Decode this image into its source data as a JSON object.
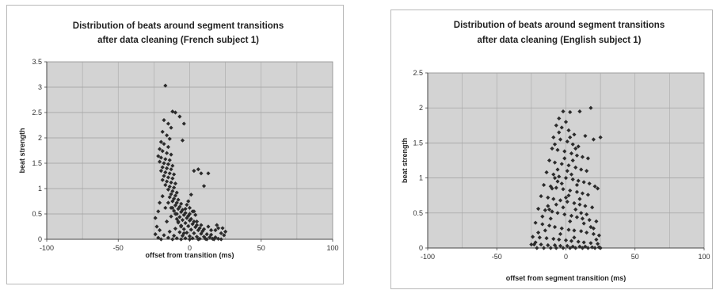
{
  "chart_data": [
    {
      "type": "scatter",
      "title": [
        "Distribution of beats around segment transitions",
        "after data cleaning (French subject 1)"
      ],
      "xlabel": "offset from transition (ms)",
      "ylabel": "beat strength",
      "xlim": [
        -100,
        100
      ],
      "ylim": [
        0,
        3.5
      ],
      "xticks": [
        "-100",
        "-50",
        "0",
        "50",
        "100"
      ],
      "yticks": [
        "0",
        "0.5",
        "1",
        "1.5",
        "2",
        "2.5",
        "3",
        "3.5"
      ],
      "grid": true,
      "legend": "none",
      "marker_color": "#2b2b2b",
      "plot_background": "#d3d3d3",
      "points": [
        [
          -17,
          3.03
        ],
        [
          -12,
          2.52
        ],
        [
          -10,
          2.5
        ],
        [
          -7,
          2.42
        ],
        [
          -18,
          2.35
        ],
        [
          -15,
          2.28
        ],
        [
          -13,
          2.2
        ],
        [
          -19,
          2.12
        ],
        [
          -16,
          2.05
        ],
        [
          -14,
          1.98
        ],
        [
          -20,
          1.92
        ],
        [
          -18,
          1.88
        ],
        [
          -15,
          1.82
        ],
        [
          -21,
          1.78
        ],
        [
          -19,
          1.74
        ],
        [
          -16,
          1.7
        ],
        [
          -13,
          1.67
        ],
        [
          -22,
          1.64
        ],
        [
          -20,
          1.61
        ],
        [
          -17,
          1.58
        ],
        [
          -14,
          1.56
        ],
        [
          -21,
          1.53
        ],
        [
          -18,
          1.5
        ],
        [
          -15,
          1.48
        ],
        [
          -12,
          1.45
        ],
        [
          -19,
          1.42
        ],
        [
          -16,
          1.4
        ],
        [
          -13,
          1.38
        ],
        [
          -20,
          1.35
        ],
        [
          -17,
          1.32
        ],
        [
          -14,
          1.3
        ],
        [
          -11,
          1.28
        ],
        [
          -18,
          1.25
        ],
        [
          -15,
          1.22
        ],
        [
          -12,
          1.2
        ],
        [
          -19,
          1.17
        ],
        [
          -16,
          1.14
        ],
        [
          -13,
          1.12
        ],
        [
          -10,
          1.1
        ],
        [
          -17,
          1.07
        ],
        [
          -14,
          1.04
        ],
        [
          -11,
          1.02
        ],
        [
          -15,
          0.98
        ],
        [
          -12,
          0.95
        ],
        [
          -9,
          0.92
        ],
        [
          -13,
          0.89
        ],
        [
          -10,
          0.86
        ],
        [
          -14,
          0.83
        ],
        [
          -11,
          0.8
        ],
        [
          -8,
          0.78
        ],
        [
          -12,
          0.75
        ],
        [
          -9,
          0.72
        ],
        [
          -6,
          0.7
        ],
        [
          -10,
          0.67
        ],
        [
          -7,
          0.64
        ],
        [
          -13,
          0.62
        ],
        [
          -8,
          0.6
        ],
        [
          -5,
          0.58
        ],
        [
          -11,
          0.56
        ],
        [
          -6,
          0.54
        ],
        [
          -3,
          0.52
        ],
        [
          -9,
          0.5
        ],
        [
          -4,
          0.48
        ],
        [
          -1,
          0.46
        ],
        [
          -7,
          0.44
        ],
        [
          -2,
          0.42
        ],
        [
          1,
          0.4
        ],
        [
          -5,
          0.38
        ],
        [
          0,
          0.37
        ],
        [
          3,
          0.35
        ],
        [
          -8,
          0.33
        ],
        [
          -3,
          0.32
        ],
        [
          2,
          0.3
        ],
        [
          5,
          0.28
        ],
        [
          -6,
          0.27
        ],
        [
          -1,
          0.26
        ],
        [
          4,
          0.24
        ],
        [
          7,
          0.22
        ],
        [
          -10,
          0.21
        ],
        [
          -4,
          0.2
        ],
        [
          1,
          0.19
        ],
        [
          6,
          0.18
        ],
        [
          9,
          0.16
        ],
        [
          -14,
          0.15
        ],
        [
          -7,
          0.14
        ],
        [
          -2,
          0.13
        ],
        [
          3,
          0.12
        ],
        [
          8,
          0.11
        ],
        [
          12,
          0.1
        ],
        [
          15,
          0.09
        ],
        [
          -18,
          0.08
        ],
        [
          -11,
          0.07
        ],
        [
          -5,
          0.07
        ],
        [
          0,
          0.06
        ],
        [
          5,
          0.05
        ],
        [
          10,
          0.05
        ],
        [
          14,
          0.04
        ],
        [
          18,
          0.04
        ],
        [
          -22,
          0.03
        ],
        [
          -15,
          0.03
        ],
        [
          -9,
          0.02
        ],
        [
          -3,
          0.02
        ],
        [
          2,
          0.02
        ],
        [
          7,
          0.01
        ],
        [
          11,
          0.01
        ],
        [
          16,
          0.01
        ],
        [
          20,
          0.01
        ],
        [
          -20,
          0.0
        ],
        [
          -12,
          0.0
        ],
        [
          -6,
          0.0
        ],
        [
          0,
          0.0
        ],
        [
          6,
          0.0
        ],
        [
          12,
          0.0
        ],
        [
          17,
          0.0
        ],
        [
          22,
          0.0
        ],
        [
          25,
          0.15
        ],
        [
          22,
          0.12
        ],
        [
          20,
          0.22
        ],
        [
          18,
          0.18
        ],
        [
          24,
          0.08
        ],
        [
          3,
          1.35
        ],
        [
          6,
          1.38
        ],
        [
          8,
          1.3
        ],
        [
          13,
          1.3
        ],
        [
          10,
          1.05
        ],
        [
          -4,
          2.28
        ],
        [
          -5,
          1.95
        ],
        [
          0,
          0.62
        ],
        [
          2,
          0.55
        ],
        [
          4,
          0.48
        ],
        [
          -1,
          0.75
        ],
        [
          -2,
          0.68
        ],
        [
          1,
          0.88
        ],
        [
          -24,
          0.42
        ],
        [
          -22,
          0.55
        ],
        [
          -23,
          0.25
        ],
        [
          -24,
          0.1
        ],
        [
          -21,
          0.18
        ],
        [
          -16,
          0.35
        ],
        [
          -13,
          0.45
        ],
        [
          -10,
          0.5
        ],
        [
          -8,
          0.35
        ],
        [
          -6,
          0.25
        ],
        [
          -4,
          0.12
        ],
        [
          -3,
          0.6
        ],
        [
          0,
          0.5
        ],
        [
          3,
          0.55
        ],
        [
          5,
          0.35
        ],
        [
          8,
          0.28
        ],
        [
          10,
          0.2
        ],
        [
          13,
          0.25
        ],
        [
          15,
          0.18
        ],
        [
          19,
          0.28
        ],
        [
          23,
          0.22
        ],
        [
          -17,
          0.62
        ],
        [
          -19,
          0.85
        ],
        [
          -21,
          0.72
        ],
        [
          -15,
          0.72
        ],
        [
          -12,
          0.62
        ],
        [
          -9,
          0.4
        ]
      ]
    },
    {
      "type": "scatter",
      "title": [
        "Distribution of beats around segment transitions",
        "after data cleaning (English subject 1)"
      ],
      "xlabel": "offset from segment transition (ms)",
      "ylabel": "beat strength",
      "xlim": [
        -100,
        100
      ],
      "ylim": [
        0,
        2.5
      ],
      "xticks": [
        "-100",
        "-50",
        "0",
        "50",
        "100"
      ],
      "yticks": [
        "0",
        "0.5",
        "1",
        "1.5",
        "2",
        "2.5"
      ],
      "grid": true,
      "legend": "none",
      "marker_color": "#2b2b2b",
      "plot_background": "#d3d3d3",
      "points": [
        [
          -2,
          1.95
        ],
        [
          3,
          1.94
        ],
        [
          10,
          1.95
        ],
        [
          18,
          2.0
        ],
        [
          -5,
          1.85
        ],
        [
          0,
          1.8
        ],
        [
          -7,
          1.75
        ],
        [
          -3,
          1.72
        ],
        [
          2,
          1.68
        ],
        [
          6,
          1.62
        ],
        [
          -9,
          1.58
        ],
        [
          -4,
          1.55
        ],
        [
          1,
          1.52
        ],
        [
          5,
          1.48
        ],
        [
          9,
          1.45
        ],
        [
          14,
          1.6
        ],
        [
          20,
          1.55
        ],
        [
          25,
          1.58
        ],
        [
          -10,
          1.42
        ],
        [
          -6,
          1.4
        ],
        [
          -1,
          1.38
        ],
        [
          4,
          1.35
        ],
        [
          8,
          1.32
        ],
        [
          12,
          1.3
        ],
        [
          16,
          1.28
        ],
        [
          -12,
          1.25
        ],
        [
          -8,
          1.22
        ],
        [
          -3,
          1.2
        ],
        [
          2,
          1.18
        ],
        [
          7,
          1.15
        ],
        [
          11,
          1.12
        ],
        [
          15,
          1.1
        ],
        [
          -14,
          1.08
        ],
        [
          -9,
          1.05
        ],
        [
          -5,
          1.02
        ],
        [
          0,
          1.0
        ],
        [
          5,
          0.98
        ],
        [
          9,
          0.96
        ],
        [
          13,
          0.94
        ],
        [
          17,
          0.92
        ],
        [
          -16,
          0.9
        ],
        [
          -11,
          0.88
        ],
        [
          -7,
          0.86
        ],
        [
          -2,
          0.84
        ],
        [
          3,
          0.82
        ],
        [
          8,
          0.8
        ],
        [
          12,
          0.78
        ],
        [
          16,
          0.76
        ],
        [
          21,
          0.88
        ],
        [
          23,
          0.85
        ],
        [
          -18,
          0.74
        ],
        [
          -13,
          0.72
        ],
        [
          -9,
          0.7
        ],
        [
          -4,
          0.68
        ],
        [
          1,
          0.66
        ],
        [
          6,
          0.64
        ],
        [
          10,
          0.62
        ],
        [
          14,
          0.6
        ],
        [
          19,
          0.58
        ],
        [
          -20,
          0.56
        ],
        [
          -15,
          0.54
        ],
        [
          -10,
          0.52
        ],
        [
          -6,
          0.5
        ],
        [
          -1,
          0.48
        ],
        [
          4,
          0.46
        ],
        [
          8,
          0.44
        ],
        [
          12,
          0.42
        ],
        [
          17,
          0.4
        ],
        [
          22,
          0.38
        ],
        [
          -22,
          0.36
        ],
        [
          -17,
          0.34
        ],
        [
          -12,
          0.32
        ],
        [
          -8,
          0.3
        ],
        [
          -3,
          0.28
        ],
        [
          2,
          0.26
        ],
        [
          6,
          0.25
        ],
        [
          11,
          0.24
        ],
        [
          15,
          0.22
        ],
        [
          20,
          0.2
        ],
        [
          24,
          0.18
        ],
        [
          -24,
          0.16
        ],
        [
          -19,
          0.15
        ],
        [
          -14,
          0.14
        ],
        [
          -9,
          0.13
        ],
        [
          -5,
          0.12
        ],
        [
          0,
          0.11
        ],
        [
          4,
          0.1
        ],
        [
          9,
          0.09
        ],
        [
          13,
          0.08
        ],
        [
          18,
          0.07
        ],
        [
          23,
          0.06
        ],
        [
          -23,
          0.05
        ],
        [
          -18,
          0.05
        ],
        [
          -13,
          0.04
        ],
        [
          -8,
          0.04
        ],
        [
          -4,
          0.03
        ],
        [
          1,
          0.03
        ],
        [
          5,
          0.02
        ],
        [
          10,
          0.02
        ],
        [
          14,
          0.02
        ],
        [
          19,
          0.01
        ],
        [
          24,
          0.01
        ],
        [
          -21,
          0.0
        ],
        [
          -16,
          0.0
        ],
        [
          -11,
          0.0
        ],
        [
          -7,
          0.0
        ],
        [
          -2,
          0.0
        ],
        [
          3,
          0.0
        ],
        [
          7,
          0.0
        ],
        [
          12,
          0.0
        ],
        [
          16,
          0.0
        ],
        [
          21,
          0.0
        ],
        [
          25,
          0.0
        ],
        [
          -5,
          1.65
        ],
        [
          -8,
          1.48
        ],
        [
          3,
          1.58
        ],
        [
          7,
          1.42
        ],
        [
          -1,
          1.28
        ],
        [
          -6,
          1.12
        ],
        [
          4,
          1.05
        ],
        [
          -3,
          0.92
        ],
        [
          2,
          0.75
        ],
        [
          -7,
          0.62
        ],
        [
          7,
          0.55
        ],
        [
          -11,
          0.42
        ],
        [
          13,
          0.35
        ],
        [
          -15,
          0.25
        ],
        [
          -2,
          0.58
        ],
        [
          0,
          0.72
        ],
        [
          3,
          0.38
        ],
        [
          -4,
          0.2
        ],
        [
          6,
          0.15
        ],
        [
          -10,
          0.85
        ],
        [
          10,
          0.7
        ],
        [
          -12,
          0.55
        ],
        [
          15,
          0.48
        ],
        [
          18,
          0.3
        ],
        [
          22,
          0.12
        ],
        [
          -20,
          0.22
        ],
        [
          -22,
          0.08
        ],
        [
          -6,
          0.95
        ],
        [
          1,
          1.1
        ],
        [
          5,
          1.25
        ],
        [
          -8,
          1.0
        ],
        [
          8,
          0.9
        ],
        [
          -13,
          0.6
        ],
        [
          11,
          0.5
        ],
        [
          -17,
          0.45
        ],
        [
          20,
          0.28
        ],
        [
          -25,
          0.05
        ]
      ]
    }
  ]
}
